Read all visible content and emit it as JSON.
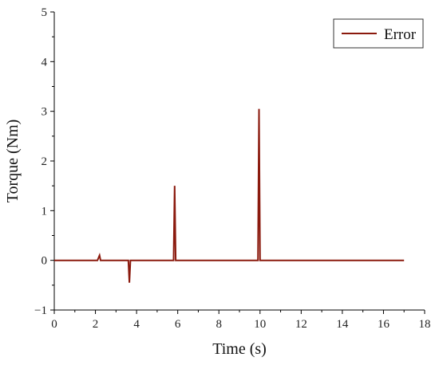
{
  "chart_data": {
    "type": "line",
    "xlabel": "Time  (s)",
    "ylabel": "Torque  (Nm)",
    "xlim": [
      0,
      18
    ],
    "ylim": [
      -1,
      5
    ],
    "x_ticks": [
      "0",
      "2",
      "4",
      "6",
      "8",
      "10",
      "12",
      "14",
      "16",
      "18"
    ],
    "y_ticks": [
      "5",
      "4",
      "3",
      "2",
      "1",
      "0",
      "−1"
    ],
    "grid": false,
    "legend_position": "top-right",
    "series": [
      {
        "name": "Error",
        "color": "#8b1a0e",
        "x": [
          0,
          2.1,
          2.2,
          2.25,
          3.6,
          3.65,
          3.7,
          5.8,
          5.85,
          5.9,
          9.9,
          9.95,
          10.0,
          17.0
        ],
        "y": [
          0,
          0,
          0.1,
          0,
          0,
          -0.45,
          0,
          0,
          1.5,
          0,
          0,
          3.05,
          0,
          0
        ]
      }
    ]
  }
}
